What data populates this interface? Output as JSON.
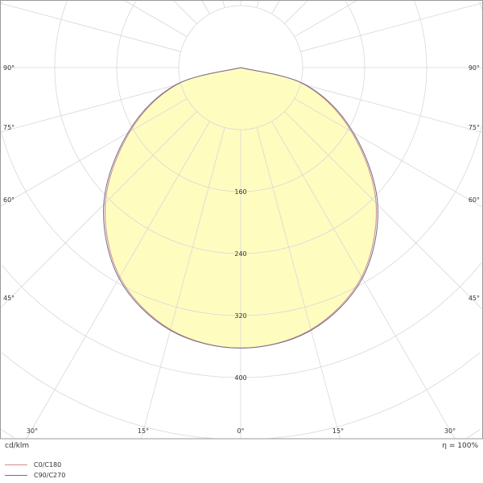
{
  "chart_data": {
    "type": "polar",
    "title": "",
    "unit_label": "cd/klm",
    "efficiency_label": "η = 100%",
    "radial_step": 80,
    "radial_tick_labels": [
      "160",
      "240",
      "320",
      "400"
    ],
    "radial_tick_values": [
      160,
      240,
      320,
      400
    ],
    "angle_labels_bottom": [
      "30°",
      "15°",
      "0°",
      "15°",
      "30°"
    ],
    "angle_labels_side": [
      "45°",
      "60°",
      "75°",
      "90°"
    ],
    "grid": true,
    "fill_color": "#fffcc0",
    "series": [
      {
        "name": "C0/C180",
        "color": "#d08a8a",
        "angles": [
          0,
          15,
          30,
          45,
          60,
          75,
          90
        ],
        "values": [
          362,
          350,
          312,
          247,
          165,
          86,
          0
        ]
      },
      {
        "name": "C90/C270",
        "color": "#707088",
        "angles": [
          0,
          15,
          30,
          45,
          60,
          75,
          90
        ],
        "values": [
          362,
          351,
          314,
          250,
          168,
          88,
          0
        ]
      }
    ],
    "legend": "bottom-left"
  }
}
